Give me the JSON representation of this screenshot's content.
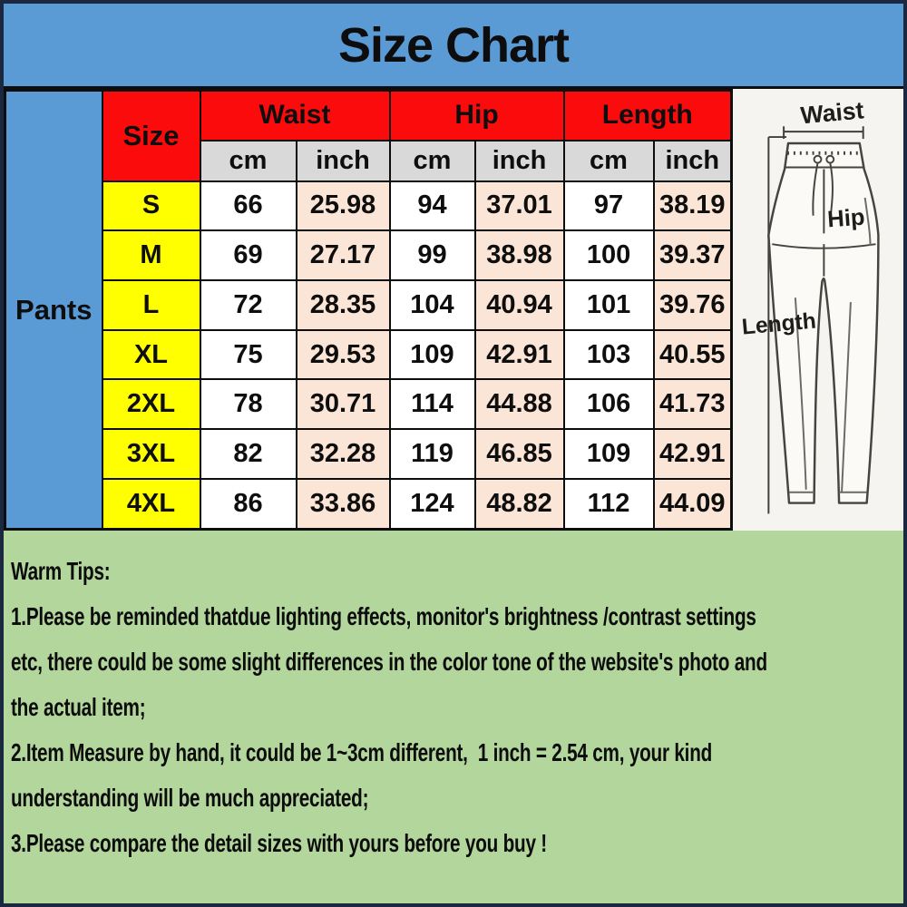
{
  "title": "Size Chart",
  "product_label": "Pants",
  "table": {
    "size_header": "Size",
    "measure_groups": [
      "Waist",
      "Hip",
      "Length"
    ],
    "unit_headers": [
      "cm",
      "inch"
    ],
    "rows": [
      {
        "size": "S",
        "waist_cm": "66",
        "waist_inch": "25.98",
        "hip_cm": "94",
        "hip_inch": "37.01",
        "length_cm": "97",
        "length_inch": "38.19"
      },
      {
        "size": "M",
        "waist_cm": "69",
        "waist_inch": "27.17",
        "hip_cm": "99",
        "hip_inch": "38.98",
        "length_cm": "100",
        "length_inch": "39.37"
      },
      {
        "size": "L",
        "waist_cm": "72",
        "waist_inch": "28.35",
        "hip_cm": "104",
        "hip_inch": "40.94",
        "length_cm": "101",
        "length_inch": "39.76"
      },
      {
        "size": "XL",
        "waist_cm": "75",
        "waist_inch": "29.53",
        "hip_cm": "109",
        "hip_inch": "42.91",
        "length_cm": "103",
        "length_inch": "40.55"
      },
      {
        "size": "2XL",
        "waist_cm": "78",
        "waist_inch": "30.71",
        "hip_cm": "114",
        "hip_inch": "44.88",
        "length_cm": "106",
        "length_inch": "41.73"
      },
      {
        "size": "3XL",
        "waist_cm": "82",
        "waist_inch": "32.28",
        "hip_cm": "119",
        "hip_inch": "46.85",
        "length_cm": "109",
        "length_inch": "42.91"
      },
      {
        "size": "4XL",
        "waist_cm": "86",
        "waist_inch": "33.86",
        "hip_cm": "124",
        "hip_inch": "48.82",
        "length_cm": "112",
        "length_inch": "44.09"
      }
    ]
  },
  "diagram": {
    "waist_label": "Waist",
    "hip_label": "Hip",
    "length_label": "Length"
  },
  "tips": {
    "heading": "Warm Tips:",
    "lines": [
      "1.Please be reminded thatdue lighting effects, monitor's brightness /contrast settings",
      "etc, there could be some slight differences in the color tone of the website's photo and",
      "the actual item;",
      "2.Item Measure by hand, it could be 1~3cm different,  1 inch = 2.54 cm, your kind",
      "understanding will be much appreciated;",
      "3.Please compare the detail sizes with yours before you buy !"
    ]
  },
  "colors": {
    "banner_blue": "#5b9bd5",
    "header_red": "#fb0b0b",
    "size_yellow": "#ffff00",
    "unit_gray": "#d9d9d9",
    "inch_peach": "#fbe5d6",
    "tips_green": "#b2d69b",
    "frame_navy": "#1b2940"
  }
}
